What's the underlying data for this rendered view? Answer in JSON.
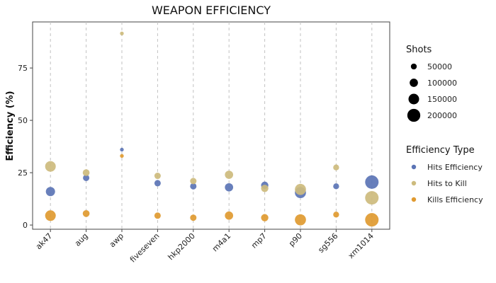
{
  "chart_data": {
    "type": "scatter",
    "title": "WEAPON EFFICIENCY",
    "xlabel": "",
    "ylabel": "Efficiency (%)",
    "ylim": [
      -2,
      97
    ],
    "yticks": [
      0,
      25,
      50,
      75
    ],
    "grid": "vertical dashed lines at each category",
    "categories": [
      "ak47",
      "aug",
      "awp",
      "fiveseven",
      "hkp2000",
      "m4a1",
      "mp7",
      "p90",
      "sg556",
      "xm1014"
    ],
    "series": [
      {
        "name": "Hits Efficiency",
        "color": "#5b74b5",
        "values": [
          16,
          22.5,
          36,
          20,
          18.5,
          18,
          19,
          15.5,
          18.5,
          20.5
        ],
        "shots": [
          120000,
          60000,
          5000,
          60000,
          60000,
          100000,
          80000,
          160000,
          50000,
          210000
        ]
      },
      {
        "name": "Hits to Kill",
        "color": "#cdbb7d",
        "values": [
          28,
          25,
          91.5,
          23.5,
          21,
          24,
          17.5,
          17,
          27.5,
          13
        ],
        "shots": [
          150000,
          70000,
          5000,
          60000,
          60000,
          100000,
          80000,
          160000,
          50000,
          210000
        ]
      },
      {
        "name": "Kills Efficiency",
        "color": "#e09a30",
        "values": [
          4.5,
          5.5,
          33,
          4.5,
          3.5,
          4.5,
          3.5,
          2.5,
          5,
          2.5
        ],
        "shots": [
          150000,
          70000,
          5000,
          60000,
          60000,
          100000,
          80000,
          160000,
          50000,
          210000
        ]
      }
    ],
    "size_legend": {
      "title": "Shots",
      "entries": [
        {
          "label": "50000",
          "value": 50000
        },
        {
          "label": "100000",
          "value": 100000
        },
        {
          "label": "150000",
          "value": 150000
        },
        {
          "label": "200000",
          "value": 200000
        }
      ]
    },
    "color_legend": {
      "title": "Efficiency Type",
      "placement": "right"
    }
  }
}
